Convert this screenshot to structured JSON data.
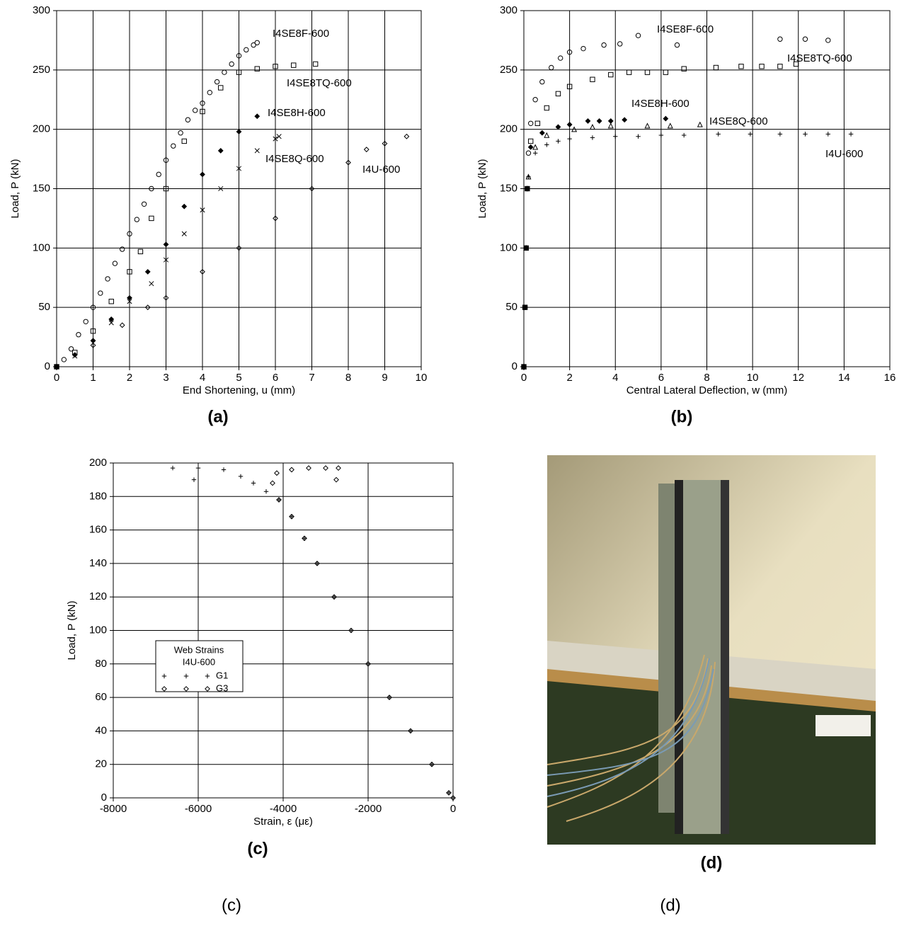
{
  "panel_labels": [
    "(a)",
    "(b)",
    "(c)",
    "(d)"
  ],
  "bottom_labels": [
    "(c)",
    "(d)"
  ],
  "chart_data": [
    {
      "type": "scatter",
      "x_label": "End Shortening, u (mm)",
      "y_label": "Load, P (kN)",
      "xlim": [
        0,
        10
      ],
      "ylim": [
        0,
        300
      ],
      "xticks": [
        0,
        1,
        2,
        3,
        4,
        5,
        6,
        7,
        8,
        9,
        10
      ],
      "yticks": [
        0,
        50,
        100,
        150,
        200,
        250,
        300
      ],
      "grid": true,
      "series": [
        {
          "name": "I4SE8F-600",
          "color": "#000000",
          "marker": "circle-open",
          "x": [
            0,
            0.2,
            0.4,
            0.6,
            0.8,
            1.0,
            1.2,
            1.4,
            1.6,
            1.8,
            2.0,
            2.2,
            2.4,
            2.6,
            2.8,
            3.0,
            3.2,
            3.4,
            3.6,
            3.8,
            4.0,
            4.2,
            4.4,
            4.6,
            4.8,
            5.0,
            5.2,
            5.4,
            5.5
          ],
          "values": [
            0,
            6,
            15,
            27,
            38,
            50,
            62,
            74,
            87,
            99,
            112,
            124,
            137,
            150,
            162,
            174,
            186,
            197,
            208,
            216,
            222,
            231,
            240,
            248,
            255,
            262,
            267,
            271,
            273
          ]
        },
        {
          "name": "I4SE8TQ-600",
          "color": "#000000",
          "marker": "square-open",
          "x": [
            0,
            0.5,
            1.0,
            1.5,
            2.0,
            2.3,
            2.6,
            3.0,
            3.5,
            4.0,
            4.5,
            5.0,
            5.5,
            6.0,
            6.5,
            7.1
          ],
          "values": [
            0,
            12,
            30,
            55,
            80,
            97,
            125,
            150,
            190,
            215,
            235,
            248,
            251,
            253,
            254,
            255
          ]
        },
        {
          "name": "I4SE8H-600",
          "color": "#000000",
          "marker": "diamond-filled",
          "x": [
            0,
            0.5,
            1.0,
            1.5,
            2.0,
            2.5,
            3.0,
            3.5,
            4.0,
            4.5,
            5.0,
            5.5
          ],
          "values": [
            0,
            10,
            22,
            40,
            58,
            80,
            103,
            135,
            162,
            182,
            198,
            211
          ]
        },
        {
          "name": "I4SE8Q-600",
          "color": "#000000",
          "marker": "cross",
          "x": [
            0,
            0.5,
            1.0,
            1.5,
            2.0,
            2.6,
            3.0,
            3.5,
            4.0,
            4.5,
            5.0,
            5.5,
            6.0,
            6.1
          ],
          "values": [
            0,
            9,
            20,
            37,
            55,
            70,
            90,
            112,
            132,
            150,
            167,
            182,
            192,
            194
          ]
        },
        {
          "name": "I4U-600",
          "color": "#000000",
          "marker": "diamond-open",
          "x": [
            0,
            1.0,
            1.8,
            2.5,
            3.0,
            4.0,
            5.0,
            6.0,
            7.0,
            8.0,
            8.5,
            9.0,
            9.6
          ],
          "values": [
            0,
            18,
            35,
            50,
            58,
            80,
            100,
            125,
            150,
            172,
            183,
            188,
            194
          ]
        }
      ]
    },
    {
      "type": "scatter",
      "x_label": "Central Lateral Deflection, w (mm)",
      "y_label": "Load, P (kN)",
      "xlim": [
        0,
        16
      ],
      "ylim": [
        0,
        300
      ],
      "xticks": [
        0,
        2,
        4,
        6,
        8,
        10,
        12,
        14,
        16
      ],
      "yticks": [
        0,
        50,
        100,
        150,
        200,
        250,
        300
      ],
      "grid": true,
      "series": [
        {
          "name": "I4SE8F-600",
          "color": "#000000",
          "marker": "circle-open",
          "x": [
            0,
            0.05,
            0.1,
            0.15,
            0.2,
            0.3,
            0.5,
            0.8,
            1.2,
            1.6,
            2.0,
            2.6,
            3.5,
            4.2,
            5.0,
            6.7,
            11.2,
            12.3,
            13.3
          ],
          "values": [
            0,
            50,
            100,
            150,
            180,
            205,
            225,
            240,
            252,
            260,
            265,
            268,
            271,
            272,
            279,
            271,
            276,
            276,
            275
          ]
        },
        {
          "name": "I4SE8TQ-600",
          "color": "#000000",
          "marker": "square-open",
          "x": [
            0,
            0.05,
            0.1,
            0.15,
            0.3,
            0.6,
            1.0,
            1.5,
            2.0,
            3.0,
            3.8,
            4.6,
            5.4,
            6.2,
            7.0,
            8.4,
            9.5,
            10.4,
            11.2,
            11.9
          ],
          "values": [
            0,
            50,
            100,
            150,
            190,
            205,
            218,
            230,
            236,
            242,
            246,
            248,
            248,
            248,
            251,
            252,
            253,
            253,
            253,
            255
          ]
        },
        {
          "name": "I4SE8H-600",
          "color": "#000000",
          "marker": "diamond-filled",
          "x": [
            0,
            0.05,
            0.1,
            0.15,
            0.3,
            0.8,
            1.5,
            2.0,
            2.8,
            3.3,
            3.8,
            4.4,
            6.2
          ],
          "values": [
            0,
            50,
            100,
            150,
            185,
            197,
            202,
            204,
            207,
            207,
            207,
            208,
            209
          ]
        },
        {
          "name": "I4SE8Q-600",
          "color": "#000000",
          "marker": "triangle-open",
          "x": [
            0,
            0.1,
            0.2,
            0.5,
            1.0,
            2.2,
            3.0,
            3.8,
            5.4,
            6.4,
            7.7
          ],
          "values": [
            0,
            100,
            160,
            185,
            195,
            200,
            202,
            203,
            203,
            203,
            204
          ]
        },
        {
          "name": "I4U-600",
          "color": "#000000",
          "marker": "plus",
          "x": [
            0,
            0.1,
            0.2,
            0.5,
            1.0,
            1.5,
            2.0,
            3.0,
            4.0,
            5.0,
            6.0,
            7.0,
            8.5,
            9.9,
            11.2,
            12.3,
            13.3,
            14.3
          ],
          "values": [
            0,
            100,
            160,
            180,
            187,
            190,
            192,
            193,
            194,
            194,
            195,
            195,
            196,
            196,
            196,
            196,
            196,
            196
          ]
        }
      ]
    },
    {
      "type": "scatter",
      "x_label": "Strain, ε (με)",
      "y_label": "Load, P (kN)",
      "xlim": [
        -8000,
        0
      ],
      "ylim": [
        0,
        200
      ],
      "xticks": [
        -8000,
        -6000,
        -4000,
        -2000,
        0
      ],
      "yticks": [
        0,
        20,
        40,
        60,
        80,
        100,
        120,
        140,
        160,
        180,
        200
      ],
      "grid": true,
      "legend_title": "Web Strains",
      "legend_subtitle": "I4U-600",
      "series": [
        {
          "name": "G1",
          "color": "#000000",
          "marker": "plus",
          "x": [
            0,
            -100,
            -500,
            -1000,
            -1500,
            -2000,
            -2400,
            -2800,
            -3200,
            -3500,
            -3800,
            -4100,
            -4400,
            -4700,
            -5000,
            -5400,
            -6000,
            -6600,
            -6100
          ],
          "values": [
            0,
            3,
            20,
            40,
            60,
            80,
            100,
            120,
            140,
            155,
            168,
            178,
            183,
            188,
            192,
            196,
            197,
            197,
            190
          ]
        },
        {
          "name": "G3",
          "color": "#000000",
          "marker": "diamond-open",
          "x": [
            0,
            -100,
            -500,
            -1000,
            -1500,
            -2000,
            -2400,
            -2800,
            -3200,
            -3500,
            -3800,
            -4100,
            -4250,
            -4150,
            -3800,
            -3400,
            -3000,
            -2700,
            -2750
          ],
          "values": [
            0,
            3,
            20,
            40,
            60,
            80,
            100,
            120,
            140,
            155,
            168,
            178,
            188,
            194,
            196,
            197,
            197,
            197,
            190
          ]
        }
      ]
    }
  ]
}
